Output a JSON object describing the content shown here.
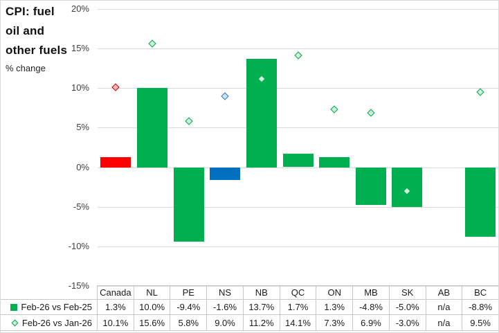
{
  "title": {
    "text": "CPI: fuel oil and other fuels",
    "subtitle": "% change"
  },
  "chart_data": {
    "type": "bar",
    "title": "CPI: fuel oil and other fuels",
    "subtitle": "% change",
    "categories": [
      "Canada",
      "NL",
      "PE",
      "NS",
      "NB",
      "QC",
      "ON",
      "MB",
      "SK",
      "AB",
      "BC"
    ],
    "series": [
      {
        "name": "Feb-26 vs Feb-25",
        "style": "bar",
        "values": [
          1.3,
          10.0,
          -9.4,
          -1.6,
          13.7,
          1.7,
          1.3,
          -4.8,
          -5.0,
          null,
          -8.8
        ],
        "labels": [
          "1.3%",
          "10.0%",
          "-9.4%",
          "-1.6%",
          "13.7%",
          "1.7%",
          "1.3%",
          "-4.8%",
          "-5.0%",
          "n/a",
          "-8.8%"
        ]
      },
      {
        "name": "Feb-26 vs Jan-26",
        "style": "diamond",
        "values": [
          10.1,
          15.6,
          5.8,
          9.0,
          11.2,
          14.1,
          7.3,
          6.9,
          -3.0,
          null,
          9.5
        ],
        "labels": [
          "10.1%",
          "15.6%",
          "5.8%",
          "9.0%",
          "11.2%",
          "14.1%",
          "7.3%",
          "6.9%",
          "-3.0%",
          "n/a",
          "9.5%"
        ]
      }
    ],
    "point_colors": [
      "red",
      "green",
      "green",
      "blue",
      "green",
      "green",
      "green",
      "green",
      "green",
      "green",
      "green"
    ],
    "palette": {
      "green": {
        "bar": "#00B050",
        "diamond_fill": "#CDF2DC",
        "diamond_stroke": "#00A14B"
      },
      "red": {
        "bar": "#FF0000",
        "diamond_fill": "#F5B8B8",
        "diamond_stroke": "#C00000"
      },
      "blue": {
        "bar": "#0070C0",
        "diamond_fill": "#CFE4F7",
        "diamond_stroke": "#2E75B6"
      }
    },
    "ylim": [
      -15,
      20
    ],
    "yticks": [
      {
        "value": 20,
        "label": "20%"
      },
      {
        "value": 15,
        "label": "15%"
      },
      {
        "value": 10,
        "label": "10%"
      },
      {
        "value": 5,
        "label": "5%"
      },
      {
        "value": 0,
        "label": "0%"
      },
      {
        "value": -5,
        "label": "-5%"
      },
      {
        "value": -10,
        "label": "-10%"
      },
      {
        "value": -15,
        "label": "-15%"
      }
    ],
    "grid": "horizontal",
    "legend_position": "bottom-table"
  },
  "table": {
    "columns": [
      "Canada",
      "NL",
      "PE",
      "NS",
      "NB",
      "QC",
      "ON",
      "MB",
      "SK",
      "AB",
      "BC"
    ],
    "rows": [
      {
        "label": "Feb-26 vs Feb-25",
        "marker": "green-square",
        "values": [
          "1.3%",
          "10.0%",
          "-9.4%",
          "-1.6%",
          "13.7%",
          "1.7%",
          "1.3%",
          "-4.8%",
          "-5.0%",
          "n/a",
          "-8.8%"
        ]
      },
      {
        "label": "Feb-26 vs Jan-26",
        "marker": "green-diamond",
        "values": [
          "10.1%",
          "15.6%",
          "5.8%",
          "9.0%",
          "11.2%",
          "14.1%",
          "7.3%",
          "6.9%",
          "-3.0%",
          "n/a",
          "9.5%"
        ]
      }
    ]
  }
}
